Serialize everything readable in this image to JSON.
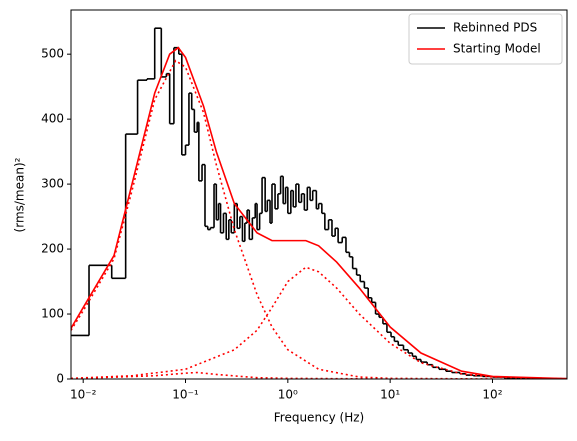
{
  "chart_data": {
    "type": "line",
    "xlabel": "Frequency (Hz)",
    "ylabel": "(rms/mean)²",
    "xscale": "log",
    "xlim": [
      0.0076,
      535
    ],
    "ylim": [
      0,
      568
    ],
    "xticks": [
      {
        "value": 0.01,
        "label": "10⁻²"
      },
      {
        "value": 0.1,
        "label": "10⁻¹"
      },
      {
        "value": 1,
        "label": "10⁰"
      },
      {
        "value": 10,
        "label": "10¹"
      },
      {
        "value": 100,
        "label": "10²"
      }
    ],
    "yticks": [
      0,
      100,
      200,
      300,
      400,
      500
    ],
    "legend": "upper right",
    "series": [
      {
        "name": "Rebinned PDS",
        "color": "#000000",
        "style": "steps",
        "x": [
          0.0076,
          0.0114,
          0.019,
          0.026,
          0.034,
          0.042,
          0.05,
          0.058,
          0.065,
          0.07,
          0.077,
          0.086,
          0.092,
          0.1,
          0.108,
          0.115,
          0.122,
          0.13,
          0.135,
          0.145,
          0.155,
          0.165,
          0.175,
          0.19,
          0.2,
          0.21,
          0.22,
          0.235,
          0.25,
          0.265,
          0.28,
          0.3,
          0.32,
          0.34,
          0.36,
          0.38,
          0.4,
          0.42,
          0.45,
          0.48,
          0.5,
          0.53,
          0.56,
          0.6,
          0.63,
          0.67,
          0.7,
          0.75,
          0.8,
          0.85,
          0.9,
          0.95,
          1.0,
          1.07,
          1.13,
          1.2,
          1.28,
          1.36,
          1.45,
          1.55,
          1.65,
          1.75,
          1.9,
          2.0,
          2.15,
          2.3,
          2.5,
          2.7,
          2.9,
          3.1,
          3.4,
          3.7,
          4.0,
          4.3,
          4.7,
          5.1,
          5.6,
          6.1,
          6.6,
          7.2,
          7.8,
          8.5,
          9.3,
          10.2,
          11,
          12,
          13.5,
          15,
          16.5,
          18,
          20,
          23,
          26,
          30,
          35,
          40,
          48,
          55,
          65,
          80,
          100,
          130,
          180,
          250,
          350
        ],
        "values": [
          67,
          175,
          155,
          377,
          460,
          462,
          540,
          465,
          470,
          393,
          510,
          500,
          345,
          360,
          440,
          415,
          380,
          395,
          305,
          330,
          235,
          230,
          233,
          300,
          245,
          270,
          225,
          255,
          215,
          245,
          225,
          270,
          232,
          250,
          212,
          240,
          260,
          215,
          248,
          270,
          230,
          255,
          310,
          258,
          275,
          240,
          300,
          262,
          285,
          312,
          270,
          295,
          255,
          290,
          265,
          300,
          272,
          285,
          260,
          295,
          275,
          290,
          262,
          270,
          255,
          230,
          245,
          220,
          232,
          210,
          218,
          195,
          188,
          170,
          160,
          150,
          140,
          125,
          118,
          100,
          95,
          85,
          72,
          65,
          58,
          52,
          45,
          40,
          35,
          30,
          26,
          22,
          18,
          15,
          12,
          10,
          8,
          6,
          5,
          4,
          3,
          2,
          1.5,
          1,
          0.5
        ]
      },
      {
        "name": "Starting Model",
        "color": "#ff0000",
        "style": "solid",
        "x": [
          0.0076,
          0.01,
          0.02,
          0.03,
          0.05,
          0.07,
          0.085,
          0.1,
          0.15,
          0.2,
          0.3,
          0.5,
          0.7,
          1,
          1.5,
          2,
          3,
          5,
          10,
          20,
          50,
          100,
          535
        ],
        "values": [
          78,
          110,
          190,
          300,
          440,
          500,
          510,
          495,
          420,
          350,
          270,
          225,
          213,
          213,
          213,
          205,
          180,
          140,
          80,
          40,
          12,
          4,
          0.5
        ]
      },
      {
        "color": "#ff0000",
        "style": "dotted",
        "x": [
          0.0076,
          0.01,
          0.02,
          0.03,
          0.05,
          0.08,
          0.1,
          0.15,
          0.2,
          0.3,
          0.5,
          0.7,
          1,
          2,
          5,
          10,
          100
        ],
        "values": [
          75,
          105,
          185,
          290,
          430,
          490,
          480,
          410,
          330,
          230,
          130,
          80,
          45,
          15,
          3,
          1,
          0
        ]
      },
      {
        "color": "#ff0000",
        "style": "dotted",
        "x": [
          0.0076,
          0.03,
          0.1,
          0.3,
          0.5,
          0.7,
          1,
          1.5,
          2,
          3,
          5,
          10,
          20,
          50,
          100,
          535
        ],
        "values": [
          1,
          5,
          15,
          45,
          75,
          110,
          150,
          172,
          165,
          140,
          100,
          55,
          25,
          8,
          3,
          0.3
        ]
      },
      {
        "color": "#ff0000",
        "style": "dotted",
        "x": [
          0.0076,
          0.05,
          0.1,
          0.13,
          0.2,
          0.5,
          1,
          10
        ],
        "values": [
          0.5,
          5,
          9,
          10,
          7,
          2,
          1,
          0
        ]
      }
    ]
  }
}
